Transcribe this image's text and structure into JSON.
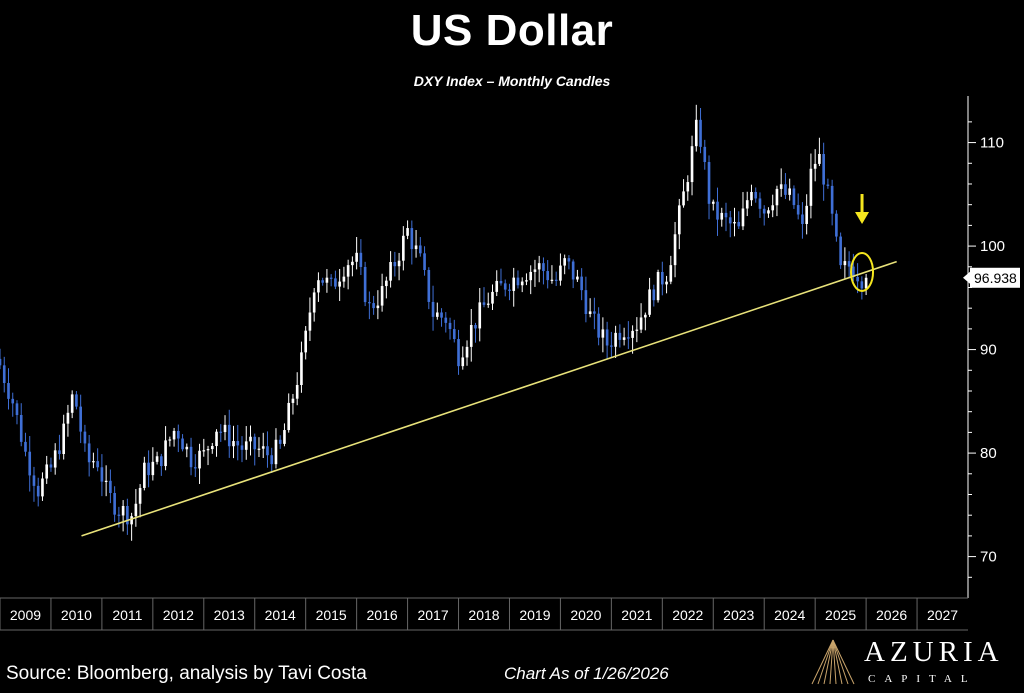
{
  "header": {
    "title": "US Dollar",
    "subtitle": "DXY Index – Monthly Candles"
  },
  "footer": {
    "source": "Source: Bloomberg, analysis by Tavi Costa",
    "date": "Chart As of 1/26/2026",
    "logo_name": "AZURIA",
    "logo_sub": "CAPITAL"
  },
  "colors": {
    "background": "#000000",
    "up_candle": "#ffffff",
    "down_candle": "#3f6fd6",
    "trendline": "#e8e27a",
    "highlight": "#f5e61e",
    "axis": "#ffffff"
  },
  "chart_data": {
    "type": "candlestick",
    "title": "US Dollar",
    "subtitle": "DXY Index – Monthly Candles",
    "x_ticks": [
      "2009",
      "2010",
      "2011",
      "2012",
      "2013",
      "2014",
      "2015",
      "2016",
      "2017",
      "2018",
      "2019",
      "2020",
      "2021",
      "2022",
      "2023",
      "2024",
      "2025",
      "2026",
      "2027"
    ],
    "x_range": [
      2009.0,
      2028.0
    ],
    "y_ticks": [
      70,
      80,
      90,
      100,
      110
    ],
    "y_range": [
      66,
      114.5
    ],
    "y_axis_position": "right",
    "last_value_label": "96.938",
    "last_value": 96.938,
    "trendline": {
      "x": [
        2010.6,
        2026.6
      ],
      "y": [
        72.0,
        98.5
      ]
    },
    "highlight": {
      "x": 2025.92,
      "y": 97.5,
      "note": "arrow and circle on last candle"
    },
    "monthly_close": [
      {
        "t": 2009.0,
        "v": 88.5
      },
      {
        "t": 2009.25,
        "v": 85.0
      },
      {
        "t": 2009.5,
        "v": 80.0
      },
      {
        "t": 2009.75,
        "v": 76.5
      },
      {
        "t": 2010.0,
        "v": 78.5
      },
      {
        "t": 2010.25,
        "v": 82.0
      },
      {
        "t": 2010.45,
        "v": 86.0
      },
      {
        "t": 2010.7,
        "v": 79.0
      },
      {
        "t": 2010.9,
        "v": 79.5
      },
      {
        "t": 2011.1,
        "v": 76.0
      },
      {
        "t": 2011.35,
        "v": 74.5
      },
      {
        "t": 2011.6,
        "v": 74.0
      },
      {
        "t": 2011.85,
        "v": 78.5
      },
      {
        "t": 2012.1,
        "v": 79.0
      },
      {
        "t": 2012.45,
        "v": 82.5
      },
      {
        "t": 2012.75,
        "v": 79.5
      },
      {
        "t": 2013.0,
        "v": 79.8
      },
      {
        "t": 2013.25,
        "v": 82.5
      },
      {
        "t": 2013.5,
        "v": 81.5
      },
      {
        "t": 2013.75,
        "v": 80.5
      },
      {
        "t": 2014.0,
        "v": 80.5
      },
      {
        "t": 2014.3,
        "v": 79.8
      },
      {
        "t": 2014.5,
        "v": 80.5
      },
      {
        "t": 2014.7,
        "v": 84.5
      },
      {
        "t": 2014.95,
        "v": 89.5
      },
      {
        "t": 2015.2,
        "v": 97.5
      },
      {
        "t": 2015.5,
        "v": 96.0
      },
      {
        "t": 2015.8,
        "v": 98.5
      },
      {
        "t": 2016.0,
        "v": 98.5
      },
      {
        "t": 2016.25,
        "v": 94.0
      },
      {
        "t": 2016.5,
        "v": 95.5
      },
      {
        "t": 2016.8,
        "v": 99.0
      },
      {
        "t": 2017.0,
        "v": 101.5
      },
      {
        "t": 2017.25,
        "v": 98.5
      },
      {
        "t": 2017.5,
        "v": 93.5
      },
      {
        "t": 2017.75,
        "v": 93.0
      },
      {
        "t": 2018.0,
        "v": 89.5
      },
      {
        "t": 2018.3,
        "v": 92.5
      },
      {
        "t": 2018.6,
        "v": 95.0
      },
      {
        "t": 2018.95,
        "v": 96.5
      },
      {
        "t": 2019.3,
        "v": 97.5
      },
      {
        "t": 2019.6,
        "v": 98.0
      },
      {
        "t": 2019.9,
        "v": 96.5
      },
      {
        "t": 2020.1,
        "v": 98.5
      },
      {
        "t": 2020.4,
        "v": 96.0
      },
      {
        "t": 2020.6,
        "v": 93.0
      },
      {
        "t": 2020.9,
        "v": 90.5
      },
      {
        "t": 2021.2,
        "v": 92.0
      },
      {
        "t": 2021.5,
        "v": 92.5
      },
      {
        "t": 2021.85,
        "v": 96.0
      },
      {
        "t": 2022.1,
        "v": 97.5
      },
      {
        "t": 2022.4,
        "v": 104.5
      },
      {
        "t": 2022.7,
        "v": 112.0
      },
      {
        "t": 2022.95,
        "v": 103.5
      },
      {
        "t": 2023.2,
        "v": 102.5
      },
      {
        "t": 2023.5,
        "v": 101.5
      },
      {
        "t": 2023.75,
        "v": 106.0
      },
      {
        "t": 2024.0,
        "v": 103.5
      },
      {
        "t": 2024.25,
        "v": 105.5
      },
      {
        "t": 2024.55,
        "v": 104.5
      },
      {
        "t": 2024.75,
        "v": 101.5
      },
      {
        "t": 2024.95,
        "v": 108.0
      },
      {
        "t": 2025.1,
        "v": 108.5
      },
      {
        "t": 2025.3,
        "v": 103.5
      },
      {
        "t": 2025.5,
        "v": 97.5
      },
      {
        "t": 2025.7,
        "v": 98.2
      },
      {
        "t": 2025.9,
        "v": 97.0
      }
    ]
  }
}
